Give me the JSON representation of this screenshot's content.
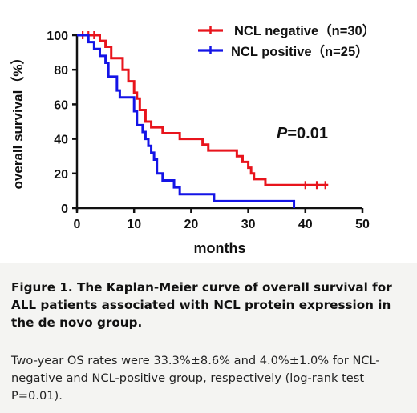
{
  "chart_data": {
    "type": "line",
    "subtype": "kaplan-meier step curve",
    "xlabel": "months",
    "ylabel": "overall survival（%）",
    "xlim": [
      0,
      50
    ],
    "ylim": [
      0,
      100
    ],
    "x_ticks": [
      "0",
      "10",
      "20",
      "30",
      "40",
      "50"
    ],
    "y_ticks": [
      "0",
      "20",
      "40",
      "60",
      "80",
      "100"
    ],
    "grid": false,
    "legend_position": "top-right",
    "annotation": {
      "italic": "P",
      "rest": "=0.01"
    },
    "series": [
      {
        "name": "NCL negative",
        "n_label": "（n=30）",
        "color": "#e8141c",
        "steps": [
          [
            0,
            100
          ],
          [
            4,
            96.7
          ],
          [
            5,
            93.3
          ],
          [
            6,
            86.7
          ],
          [
            8,
            80
          ],
          [
            9,
            73.3
          ],
          [
            10,
            66.7
          ],
          [
            10.5,
            63.3
          ],
          [
            11,
            56.7
          ],
          [
            12,
            50
          ],
          [
            13,
            46.7
          ],
          [
            15,
            43.3
          ],
          [
            18,
            40
          ],
          [
            22,
            36.7
          ],
          [
            23,
            33.3
          ],
          [
            28,
            30
          ],
          [
            29,
            26.7
          ],
          [
            30,
            23.3
          ],
          [
            30.5,
            20
          ],
          [
            31,
            16.7
          ],
          [
            33,
            13.3
          ],
          [
            44,
            13.3
          ]
        ],
        "censored": [
          [
            1,
            100
          ],
          [
            2,
            100
          ],
          [
            3,
            100
          ],
          [
            40,
            13.3
          ],
          [
            42,
            13.3
          ],
          [
            43.5,
            13.3
          ]
        ]
      },
      {
        "name": "NCL positive",
        "n_label": "（n=25）",
        "color": "#1414e6",
        "steps": [
          [
            0,
            100
          ],
          [
            2,
            96
          ],
          [
            3,
            92
          ],
          [
            4,
            88
          ],
          [
            5,
            84
          ],
          [
            5.5,
            76
          ],
          [
            7,
            68
          ],
          [
            7.5,
            64
          ],
          [
            10,
            56
          ],
          [
            10.5,
            48
          ],
          [
            11.5,
            44
          ],
          [
            12,
            40
          ],
          [
            12.5,
            36
          ],
          [
            13,
            32
          ],
          [
            13.5,
            28
          ],
          [
            14,
            20
          ],
          [
            15,
            16
          ],
          [
            17,
            12
          ],
          [
            18,
            8
          ],
          [
            24,
            4
          ],
          [
            38,
            0
          ]
        ],
        "censored": []
      }
    ]
  },
  "caption": {
    "title": "Figure 1. The Kaplan-Meier curve of overall survival for ALL patients associated with NCL protein expression in the de novo group.",
    "text": "Two-year OS rates were 33.3%±8.6% and 4.0%±1.0% for NCL-negative and NCL-positive group, respectively (log-rank test P=0.01)."
  }
}
